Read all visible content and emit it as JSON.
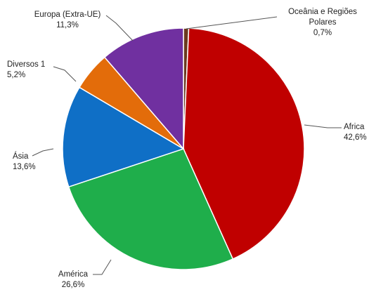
{
  "chart_data": {
    "type": "pie",
    "title": "",
    "start": "top",
    "direction": "clockwise",
    "legend": "none",
    "slices": [
      {
        "name": "Oceânia e Regiões Polares",
        "label_lines": [
          "Oceânia e Regiões",
          "Polares"
        ],
        "value": 0.7,
        "value_label": "0,7%",
        "color": "#6b3a1f"
      },
      {
        "name": "Africa",
        "label_lines": [
          "Africa"
        ],
        "value": 42.6,
        "value_label": "42,6%",
        "color": "#c00000"
      },
      {
        "name": "América",
        "label_lines": [
          "América"
        ],
        "value": 26.6,
        "value_label": "26,6%",
        "color": "#1fae4b"
      },
      {
        "name": "Ásia",
        "label_lines": [
          "Ásia"
        ],
        "value": 13.6,
        "value_label": "13,6%",
        "color": "#0f6fc6"
      },
      {
        "name": "Diversos 1",
        "label_lines": [
          "Diversos 1"
        ],
        "value": 5.2,
        "value_label": "5,2%",
        "color": "#e36c0a"
      },
      {
        "name": "Europa (Extra-UE)",
        "label_lines": [
          "Europa (Extra-UE)"
        ],
        "value": 11.3,
        "value_label": "11,3%",
        "color": "#7030a0"
      }
    ]
  }
}
